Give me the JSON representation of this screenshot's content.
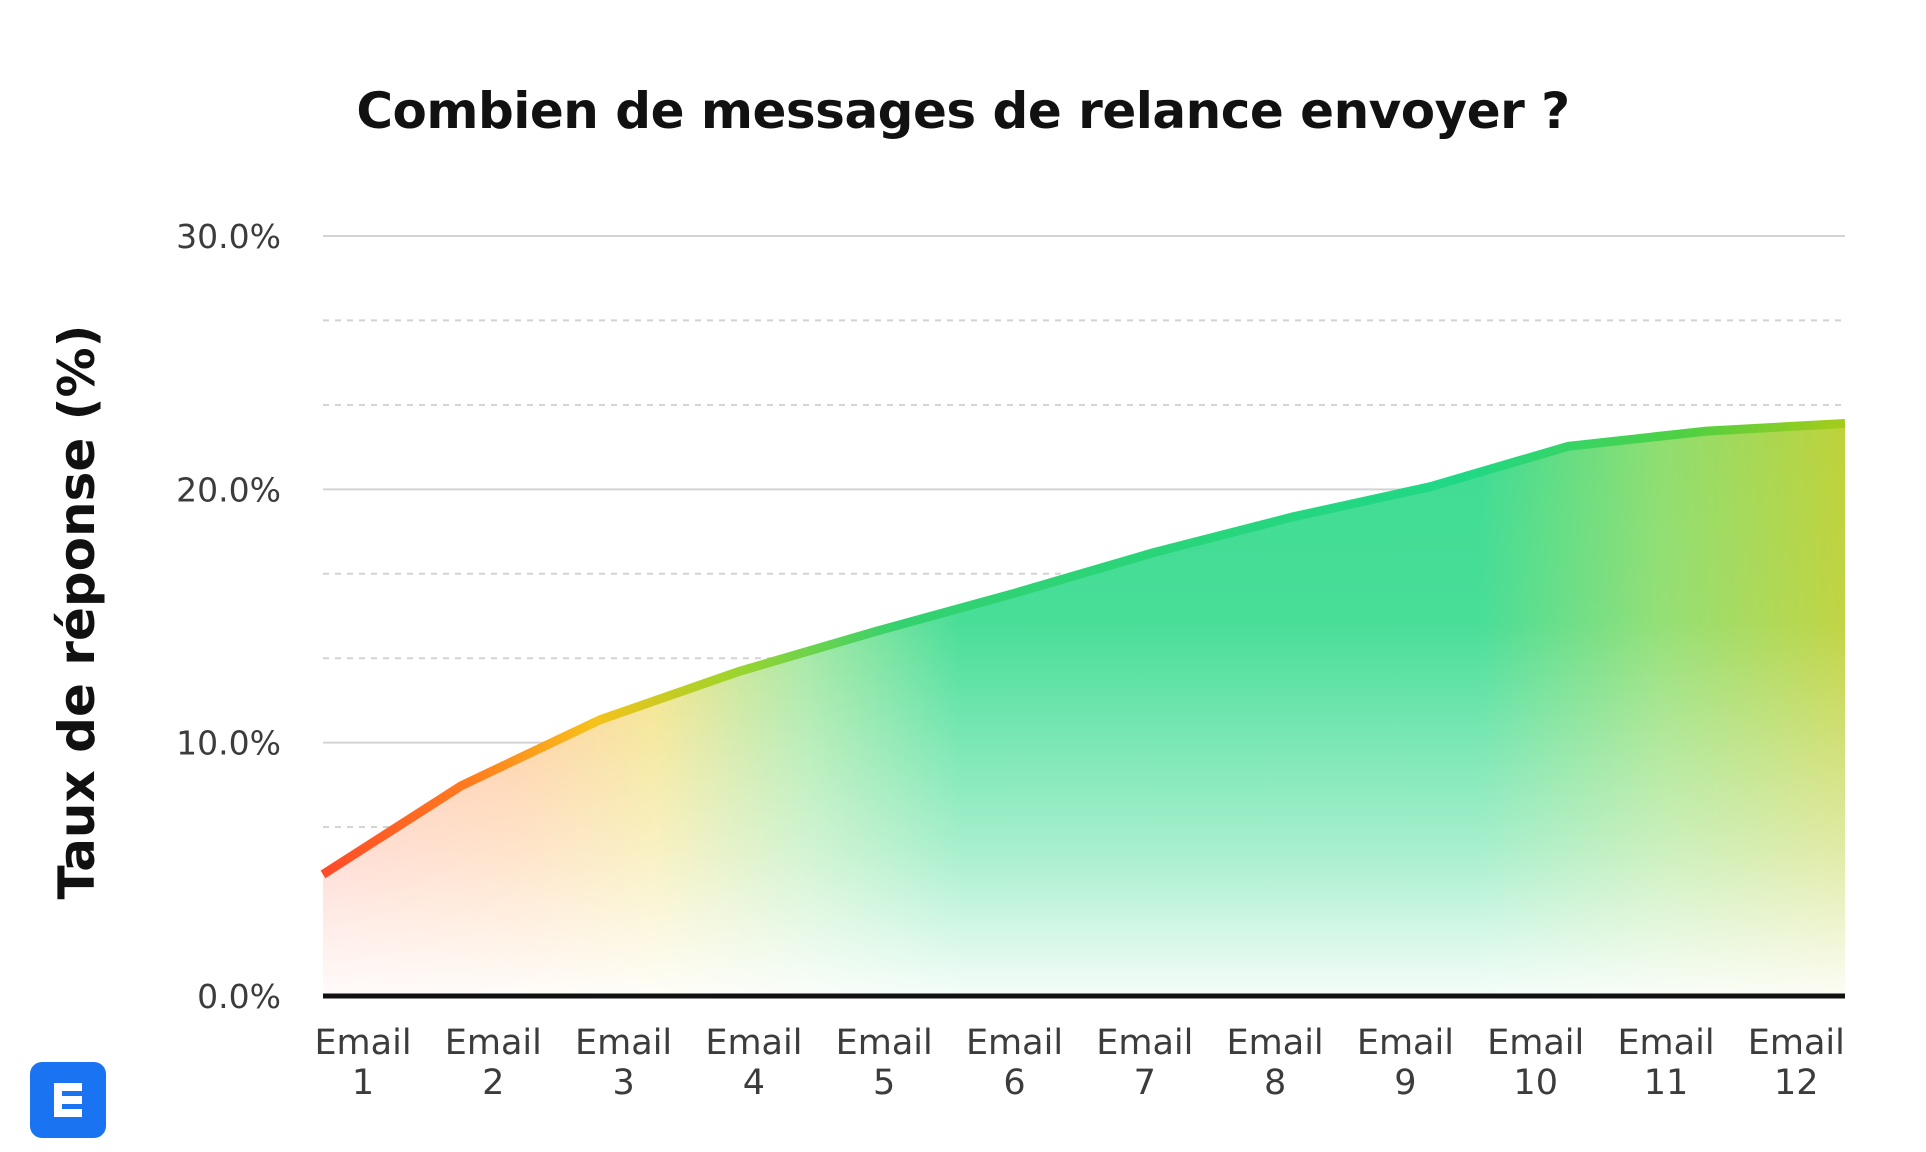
{
  "chart_data": {
    "type": "area",
    "title": "Combien de messages de relance envoyer ?",
    "xlabel": "",
    "ylabel": "Taux de réponse (%)",
    "categories": [
      [
        "Email",
        "1"
      ],
      [
        "Email",
        "2"
      ],
      [
        "Email",
        "3"
      ],
      [
        "Email",
        "4"
      ],
      [
        "Email",
        "5"
      ],
      [
        "Email",
        "6"
      ],
      [
        "Email",
        "7"
      ],
      [
        "Email",
        "8"
      ],
      [
        "Email",
        "9"
      ],
      [
        "Email",
        "10"
      ],
      [
        "Email",
        "11"
      ],
      [
        "Email",
        "12"
      ]
    ],
    "values": [
      4.8,
      8.3,
      10.9,
      12.8,
      14.4,
      15.9,
      17.5,
      18.9,
      20.1,
      21.7,
      22.3,
      22.6
    ],
    "ylim": [
      0,
      30
    ],
    "yticks": [
      0,
      10,
      20,
      30
    ],
    "ytick_labels": [
      "0.0%",
      "10.0%",
      "20.0%",
      "30.0%"
    ],
    "minor_grid": [
      3.33,
      6.67,
      13.33,
      16.67,
      23.33,
      26.67
    ],
    "grid": true,
    "legend": "none",
    "colors": {
      "start": "#ff5a2a",
      "orange": "#ff8a1e",
      "yellow": "#f3c21c",
      "green": "#22d47f",
      "end": "#a8cc1a",
      "axis": "#111111",
      "grid": "#d3d3d3",
      "logo": "#1a73f0"
    }
  },
  "logo": {
    "icon": "logo-e-icon"
  }
}
